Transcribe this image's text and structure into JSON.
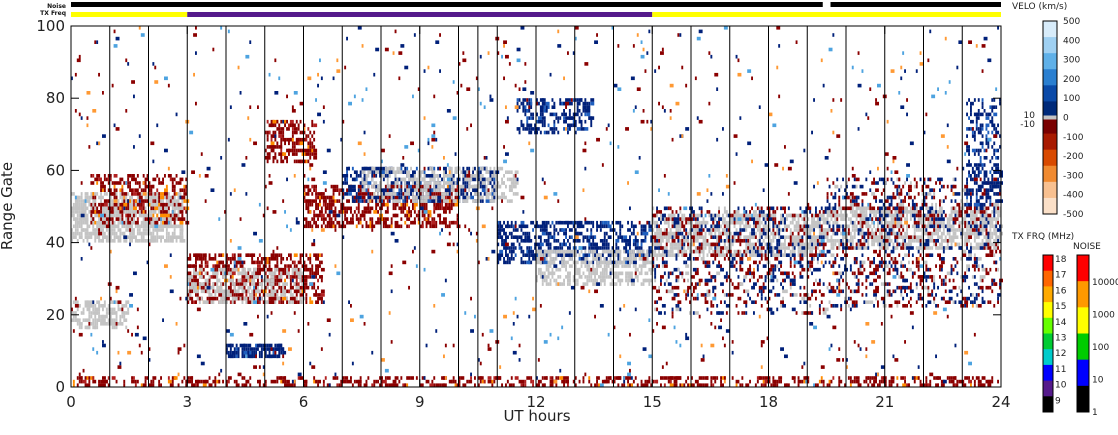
{
  "chart_data": {
    "type": "heatmap",
    "title": "",
    "xlabel": "UT hours",
    "ylabel": "Range Gate",
    "xlim": [
      0,
      24
    ],
    "ylim": [
      0,
      100
    ],
    "x_ticks": [
      0,
      3,
      6,
      9,
      12,
      15,
      18,
      21,
      24
    ],
    "y_ticks": [
      0,
      20,
      40,
      60,
      80,
      100
    ],
    "header_rows": [
      "Noise",
      "TX Freq"
    ],
    "noise_segments": [
      {
        "start": 0,
        "end": 19.4,
        "color": "#000000"
      },
      {
        "start": 19.6,
        "end": 24,
        "color": "#000000"
      }
    ],
    "txfreq_segments": [
      {
        "start": 0,
        "end": 3.0,
        "color": "#ffff00"
      },
      {
        "start": 3.0,
        "end": 15.0,
        "color": "#551a8b"
      },
      {
        "start": 15.0,
        "end": 24,
        "color": "#ffff00"
      }
    ],
    "scan_lines_ut": [
      1,
      2,
      3,
      4,
      5,
      6,
      7,
      8,
      9,
      10,
      10.5,
      11,
      12,
      13,
      14,
      15,
      16,
      17,
      18,
      19,
      20,
      21,
      22,
      23,
      24
    ],
    "velocity_colorbar": {
      "label": "VELO (km/s)",
      "range": [
        -500,
        500
      ],
      "ticks": [
        500,
        400,
        300,
        200,
        100,
        0,
        -100,
        -200,
        -300,
        -400,
        -500
      ],
      "ground_scatter_labels": [
        "10",
        "-10"
      ],
      "colors_top_to_bottom": [
        "#d8ecfa",
        "#9fd0f2",
        "#5fb0e8",
        "#2a7fd0",
        "#0a4aa8",
        "#002a7a",
        "#7a0000",
        "#a81a00",
        "#d84a00",
        "#f08a30",
        "#f8c090",
        "#fbe0c8"
      ]
    },
    "txfreq_colorbar": {
      "label": "TX FRQ (MHz)",
      "ticks": [
        18,
        17,
        16,
        15,
        14,
        13,
        12,
        11,
        10,
        9
      ],
      "colors_top_to_bottom": [
        "#ff0000",
        "#ff6600",
        "#ffaa00",
        "#ffff00",
        "#66ff00",
        "#00cc33",
        "#00cccc",
        "#0000ff",
        "#551a8b",
        "#000000"
      ]
    },
    "noise_colorbar": {
      "label": "NOISE",
      "ticks": [
        "10000",
        "1000",
        "100",
        "10",
        "1"
      ],
      "colors_top_to_bottom": [
        "#ff0000",
        "#ff9900",
        "#ffff00",
        "#00cc00",
        "#0000ff",
        "#000000"
      ]
    },
    "scatter_bands": [
      {
        "kind": "ground",
        "ut_start": 0,
        "ut_end": 2.9,
        "gate_center": 47,
        "gate_width": 14,
        "density": 0.7
      },
      {
        "kind": "ground",
        "ut_start": 0,
        "ut_end": 1.5,
        "gate_center": 20,
        "gate_width": 8,
        "density": 0.55
      },
      {
        "kind": "negative",
        "ut_start": 0.5,
        "ut_end": 3.0,
        "gate_center": 52,
        "gate_width": 14,
        "density": 0.4
      },
      {
        "kind": "negative",
        "ut_start": 3.0,
        "ut_end": 6.5,
        "gate_center": 30,
        "gate_width": 14,
        "density": 0.5
      },
      {
        "kind": "ground",
        "ut_start": 3.0,
        "ut_end": 6.0,
        "gate_center": 28,
        "gate_width": 10,
        "density": 0.35
      },
      {
        "kind": "negative",
        "ut_start": 5.0,
        "ut_end": 6.3,
        "gate_center": 68,
        "gate_width": 12,
        "density": 0.45
      },
      {
        "kind": "positive",
        "ut_start": 4.0,
        "ut_end": 5.5,
        "gate_center": 10,
        "gate_width": 4,
        "density": 0.7
      },
      {
        "kind": "negative",
        "ut_start": 6.0,
        "ut_end": 10.0,
        "gate_center": 50,
        "gate_width": 12,
        "density": 0.45
      },
      {
        "kind": "positive",
        "ut_start": 7.0,
        "ut_end": 11.0,
        "gate_center": 56,
        "gate_width": 10,
        "density": 0.4
      },
      {
        "kind": "ground",
        "ut_start": 7.5,
        "ut_end": 11.5,
        "gate_center": 56,
        "gate_width": 10,
        "density": 0.35
      },
      {
        "kind": "positive",
        "ut_start": 11.0,
        "ut_end": 15.0,
        "gate_center": 40,
        "gate_width": 12,
        "density": 0.45
      },
      {
        "kind": "ground",
        "ut_start": 12.0,
        "ut_end": 15.0,
        "gate_center": 33,
        "gate_width": 10,
        "density": 0.5
      },
      {
        "kind": "positive",
        "ut_start": 11.5,
        "ut_end": 13.5,
        "gate_center": 75,
        "gate_width": 10,
        "density": 0.4
      },
      {
        "kind": "negative",
        "ut_start": 0,
        "ut_end": 24,
        "gate_center": 1,
        "gate_width": 4,
        "density": 0.35
      },
      {
        "kind": "ground",
        "ut_start": 15.0,
        "ut_end": 19.5,
        "gate_center": 42,
        "gate_width": 12,
        "density": 0.55
      },
      {
        "kind": "mixed",
        "ut_start": 15.0,
        "ut_end": 19.5,
        "gate_center": 35,
        "gate_width": 30,
        "density": 0.25
      },
      {
        "kind": "ground",
        "ut_start": 19.5,
        "ut_end": 24,
        "gate_center": 44,
        "gate_width": 12,
        "density": 0.55
      },
      {
        "kind": "mixed",
        "ut_start": 19.5,
        "ut_end": 24,
        "gate_center": 40,
        "gate_width": 36,
        "density": 0.25
      },
      {
        "kind": "positive",
        "ut_start": 23.1,
        "ut_end": 24,
        "gate_center": 65,
        "gate_width": 30,
        "density": 0.35
      },
      {
        "kind": "noise",
        "ut_start": 0,
        "ut_end": 24,
        "gate_center": 50,
        "gate_width": 100,
        "density": 0.02
      }
    ]
  }
}
